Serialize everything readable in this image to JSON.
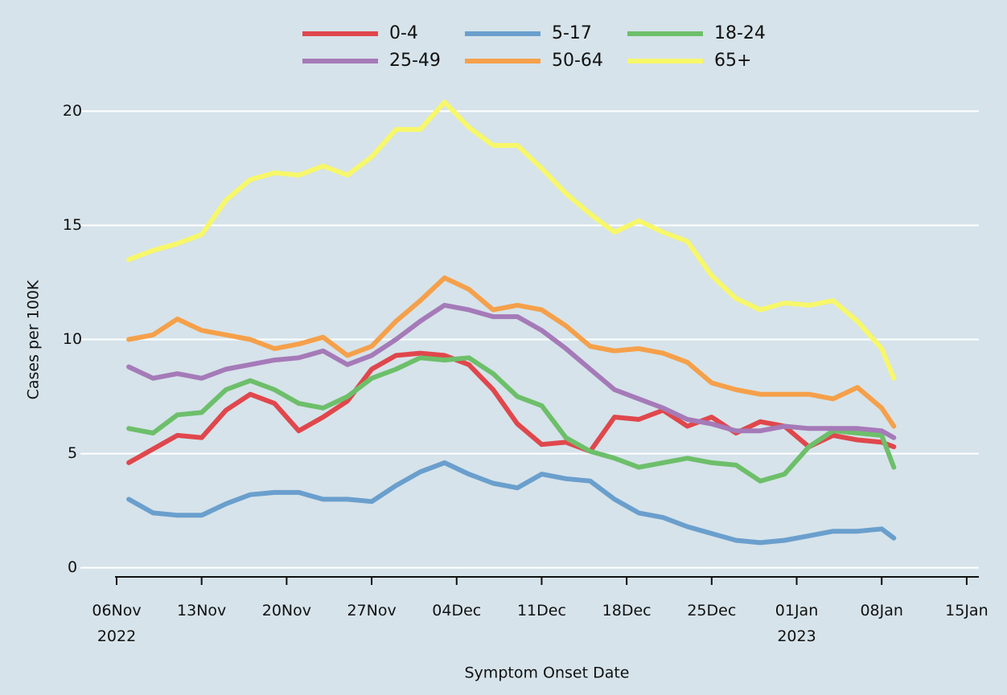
{
  "chart_data": {
    "type": "line",
    "y_label": "Cases per 100K",
    "x_label": "Symptom Onset Date",
    "x": [
      "2022-11-07",
      "2022-11-09",
      "2022-11-11",
      "2022-11-13",
      "2022-11-15",
      "2022-11-17",
      "2022-11-19",
      "2022-11-21",
      "2022-11-23",
      "2022-11-25",
      "2022-11-27",
      "2022-11-29",
      "2022-12-01",
      "2022-12-03",
      "2022-12-05",
      "2022-12-07",
      "2022-12-09",
      "2022-12-11",
      "2022-12-13",
      "2022-12-15",
      "2022-12-17",
      "2022-12-19",
      "2022-12-21",
      "2022-12-23",
      "2022-12-25",
      "2022-12-27",
      "2022-12-29",
      "2022-12-31",
      "2023-01-02",
      "2023-01-04",
      "2023-01-06",
      "2023-01-08",
      "2023-01-09"
    ],
    "series": [
      {
        "name": "0-4",
        "color": "#e0474c",
        "values": [
          4.6,
          5.2,
          5.8,
          5.7,
          6.9,
          7.6,
          7.2,
          6.0,
          6.6,
          7.3,
          8.7,
          9.3,
          9.4,
          9.3,
          8.9,
          7.8,
          6.3,
          5.4,
          5.5,
          5.1,
          6.6,
          6.5,
          6.9,
          6.2,
          6.6,
          5.9,
          6.4,
          6.2,
          5.3,
          5.8,
          5.6,
          5.5,
          5.3
        ]
      },
      {
        "name": "5-17",
        "color": "#6a9fcd",
        "values": [
          3.0,
          2.4,
          2.3,
          2.3,
          2.8,
          3.2,
          3.3,
          3.3,
          3.0,
          3.0,
          2.9,
          3.6,
          4.2,
          4.6,
          4.1,
          3.7,
          3.5,
          4.1,
          3.9,
          3.8,
          3.0,
          2.4,
          2.2,
          1.8,
          1.5,
          1.2,
          1.1,
          1.2,
          1.4,
          1.6,
          1.6,
          1.7,
          1.3
        ]
      },
      {
        "name": "18-24",
        "color": "#6dbf6a",
        "values": [
          6.1,
          5.9,
          6.7,
          6.8,
          7.8,
          8.2,
          7.8,
          7.2,
          7.0,
          7.5,
          8.3,
          8.7,
          9.2,
          9.1,
          9.2,
          8.5,
          7.5,
          7.1,
          5.7,
          5.1,
          4.8,
          4.4,
          4.6,
          4.8,
          4.6,
          4.5,
          3.8,
          4.1,
          5.3,
          6.0,
          5.9,
          5.8,
          4.4
        ]
      },
      {
        "name": "25-49",
        "color": "#a57ab8",
        "values": [
          8.8,
          8.3,
          8.5,
          8.3,
          8.7,
          8.9,
          9.1,
          9.2,
          9.5,
          8.9,
          9.3,
          10.0,
          10.8,
          11.5,
          11.3,
          11.0,
          11.0,
          10.4,
          9.6,
          8.7,
          7.8,
          7.4,
          7.0,
          6.5,
          6.3,
          6.0,
          6.0,
          6.2,
          6.1,
          6.1,
          6.1,
          6.0,
          5.7
        ]
      },
      {
        "name": "50-64",
        "color": "#f5a04a",
        "values": [
          10.0,
          10.2,
          10.9,
          10.4,
          10.2,
          10.0,
          9.6,
          9.8,
          10.1,
          9.3,
          9.7,
          10.8,
          11.7,
          12.7,
          12.2,
          11.3,
          11.5,
          11.3,
          10.6,
          9.7,
          9.5,
          9.6,
          9.4,
          9.0,
          8.1,
          7.8,
          7.6,
          7.6,
          7.6,
          7.4,
          7.9,
          7.0,
          6.2
        ]
      },
      {
        "name": "65+",
        "color": "#f7f76a",
        "values": [
          13.5,
          13.9,
          14.2,
          14.6,
          16.1,
          17.0,
          17.3,
          17.2,
          17.6,
          17.2,
          18.0,
          19.2,
          19.2,
          20.4,
          19.3,
          18.5,
          18.5,
          17.5,
          16.4,
          15.5,
          14.7,
          15.2,
          14.7,
          14.3,
          12.8,
          11.8,
          11.3,
          11.6,
          11.5,
          11.7,
          10.8,
          9.6,
          8.3
        ]
      }
    ],
    "xlim": [
      "2022-11-06",
      "2023-01-16"
    ],
    "xticks": [
      {
        "value": "2022-11-06",
        "label": "06Nov\n2022"
      },
      {
        "value": "2022-11-13",
        "label": "13Nov"
      },
      {
        "value": "2022-11-20",
        "label": "20Nov"
      },
      {
        "value": "2022-11-27",
        "label": "27Nov"
      },
      {
        "value": "2022-12-04",
        "label": "04Dec"
      },
      {
        "value": "2022-12-11",
        "label": "11Dec"
      },
      {
        "value": "2022-12-18",
        "label": "18Dec"
      },
      {
        "value": "2022-12-25",
        "label": "25Dec"
      },
      {
        "value": "2023-01-01",
        "label": "01Jan\n2023"
      },
      {
        "value": "2023-01-08",
        "label": "08Jan"
      },
      {
        "value": "2023-01-15",
        "label": "15Jan"
      }
    ],
    "ylim": [
      -0.4,
      21
    ],
    "yticks": [
      0,
      5,
      10,
      15,
      20
    ],
    "grid": true,
    "legend_position": "top"
  }
}
